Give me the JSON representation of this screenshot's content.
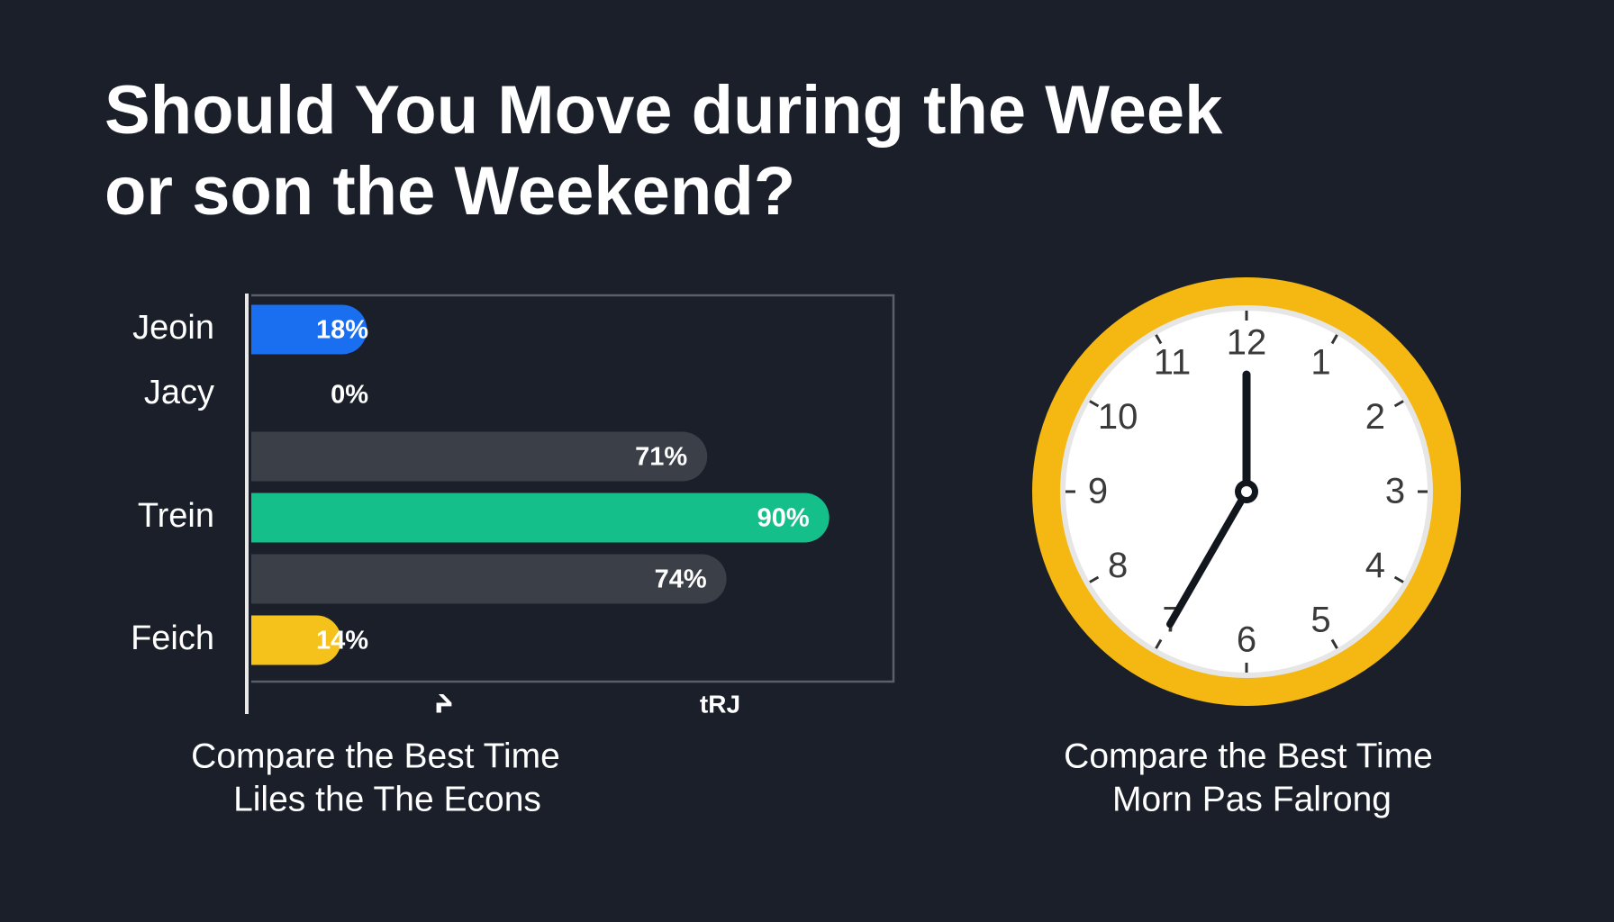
{
  "title": [
    "Should You Move during the Week",
    "or son the Weekend?"
  ],
  "chart_data": {
    "type": "bar",
    "orientation": "horizontal",
    "categories": [
      "Jeoin",
      "Jacy",
      null,
      "Trein",
      null,
      "Feich"
    ],
    "values": [
      18,
      0,
      71,
      90,
      74,
      14
    ],
    "value_labels": [
      "18%",
      "0%",
      "71%",
      "90%",
      "74%",
      "14%"
    ],
    "colors": [
      "#1a6ef0",
      "#14bf8a",
      "#3b3f47",
      "#14bf8a",
      "#3b3f47",
      "#f5c21b"
    ],
    "xlim": [
      0,
      100
    ],
    "xticks": [
      {
        "value": 30,
        "label": "ᔨ"
      },
      {
        "value": 73,
        "label": "tRJ"
      }
    ],
    "caption": [
      "Compare the Best Time",
      "Liles the The Econs"
    ]
  },
  "clock": {
    "numbers": [
      "12",
      "1",
      "2",
      "3",
      "4",
      "5",
      "6",
      "7",
      "8",
      "9",
      "10",
      "11"
    ],
    "hour": 7,
    "minute": 0,
    "caption": [
      "Compare the Best Time",
      "Morn Pas Falrong"
    ]
  }
}
